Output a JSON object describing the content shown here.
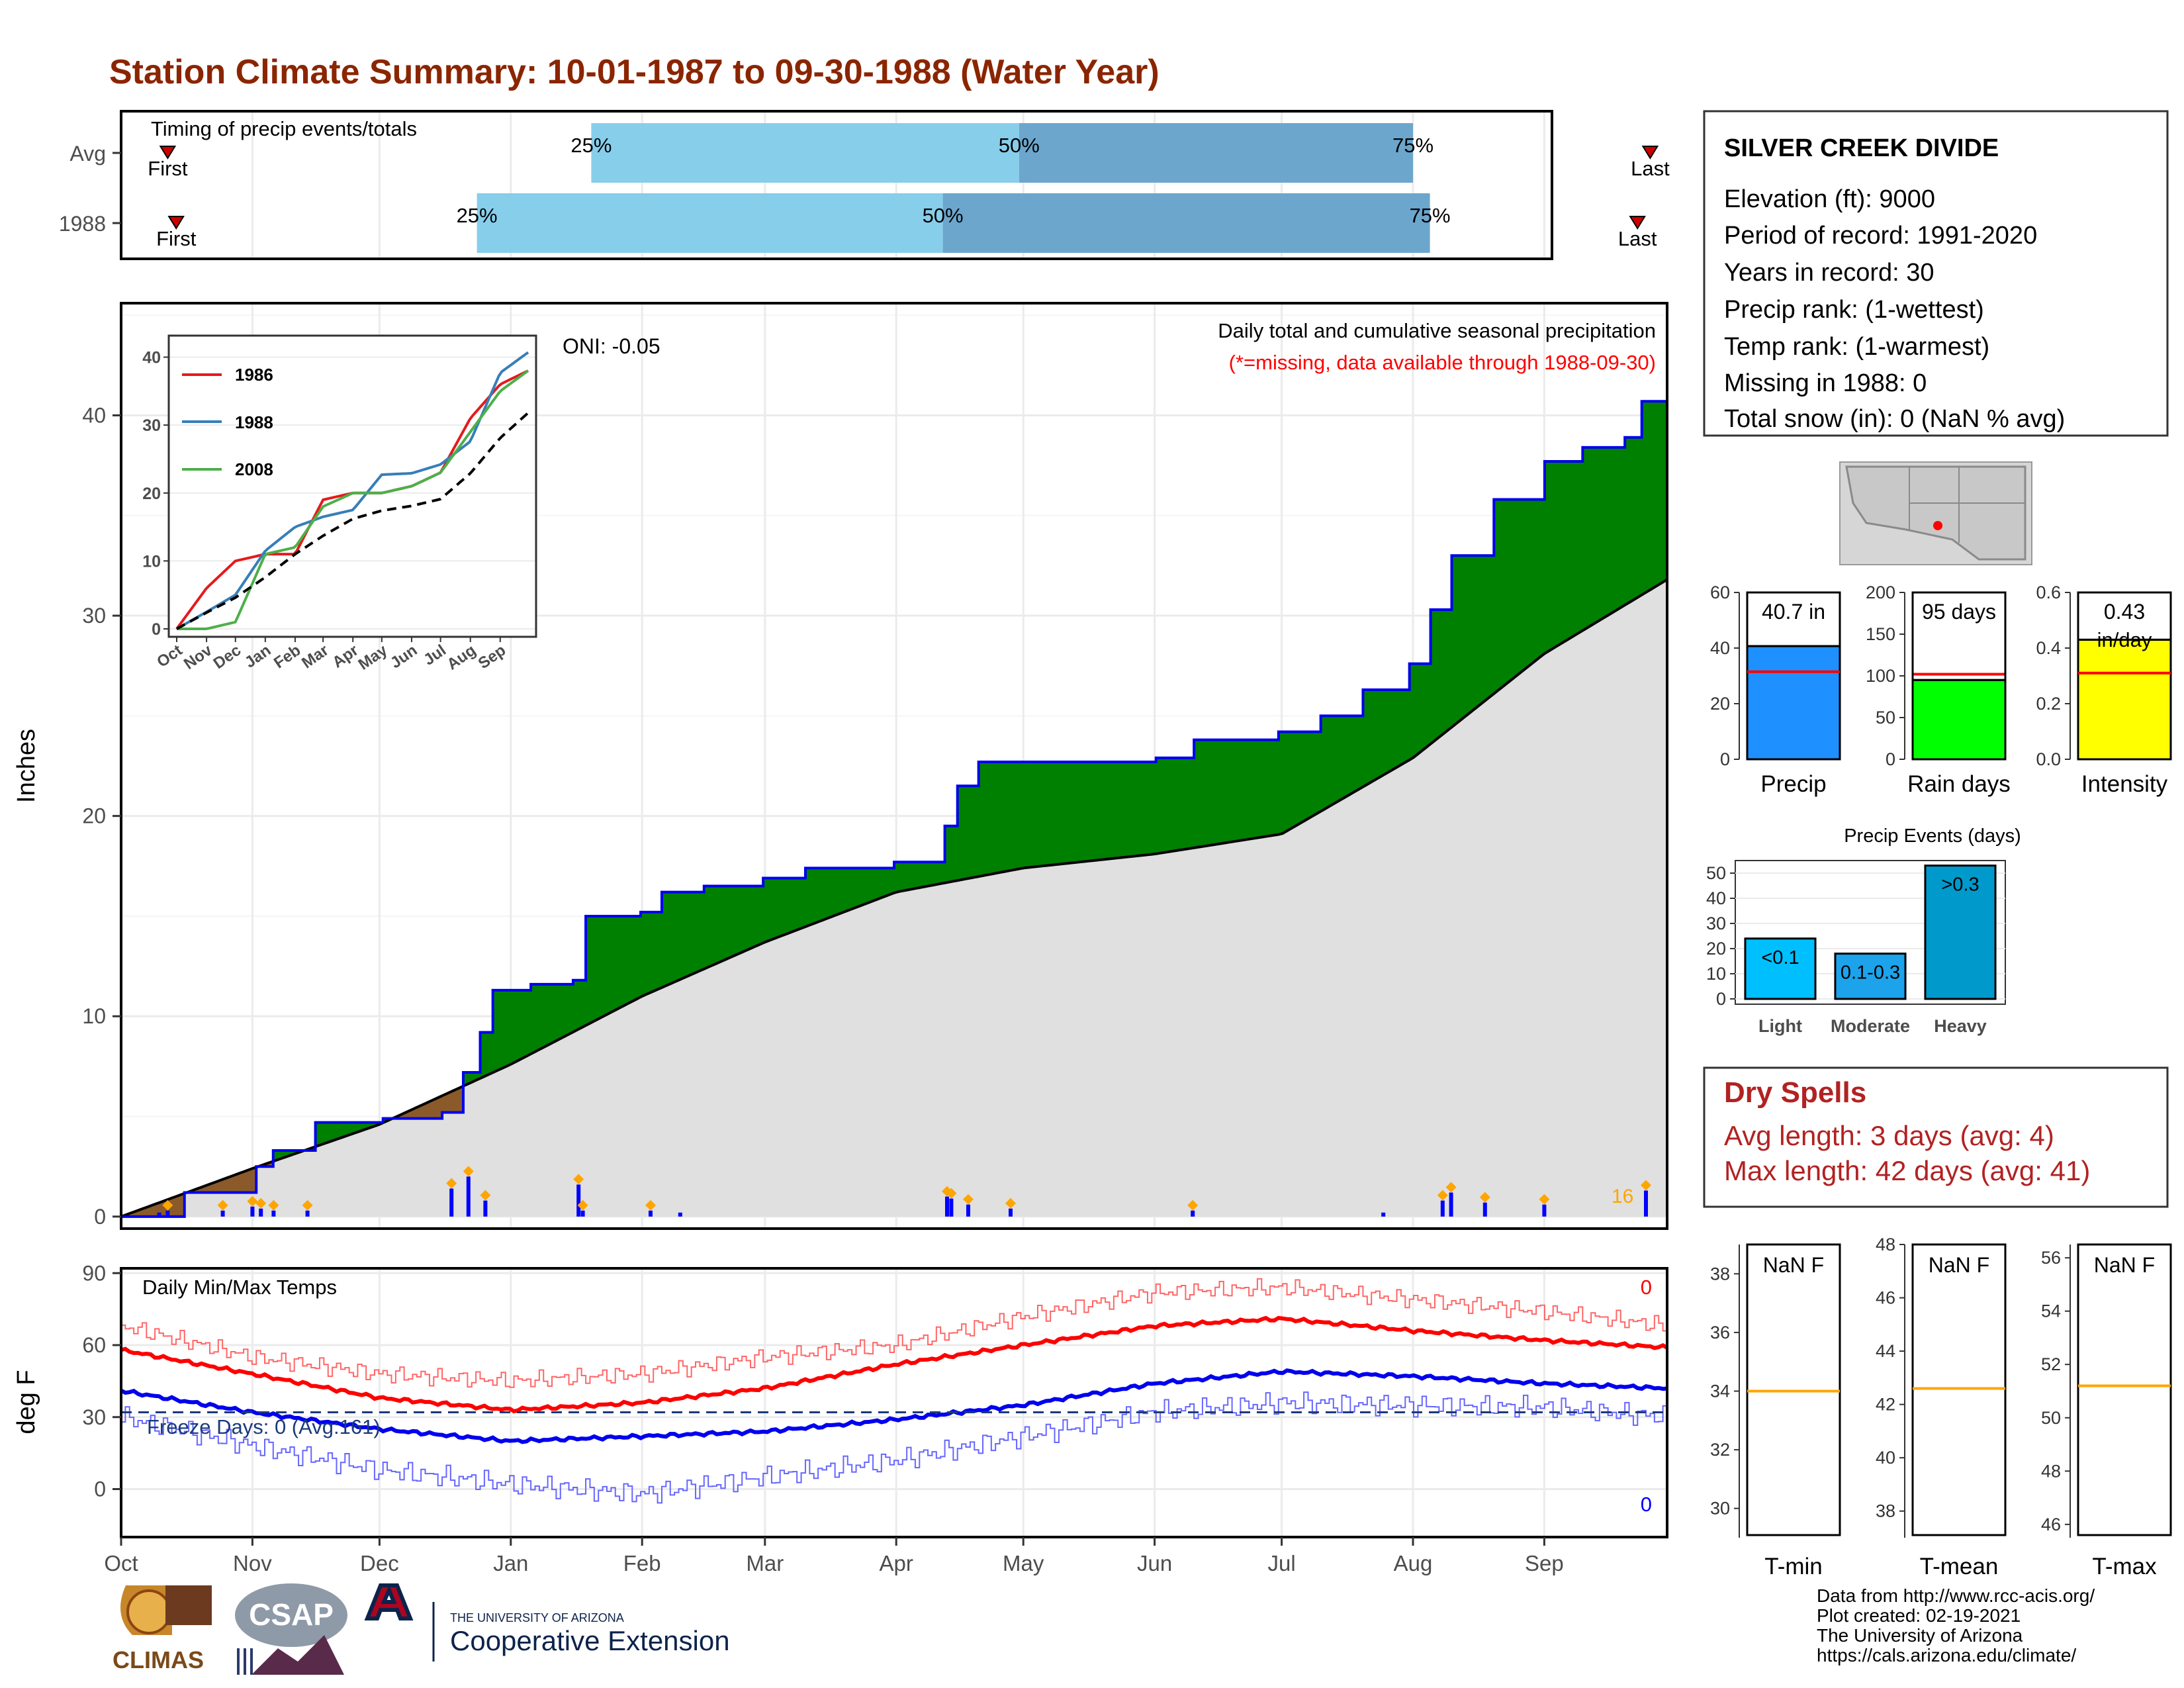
{
  "page_title": "Station Climate Summary: 10-01-1987 to 09-30-1988 (Water Year)",
  "colors": {
    "title": "#8B2500",
    "accent_red": "#B22222"
  },
  "timing_panel": {
    "title": "Timing of precip events/totals",
    "rows": [
      {
        "label": "Avg",
        "first_label": "First",
        "last_label": "Last",
        "p25": "25%",
        "p50": "50%",
        "p75": "75%",
        "first_date": "1987-10-12",
        "p25_date": "1988-01-20",
        "p50_date": "1988-04-30",
        "p75_date": "1988-08-01",
        "last_date": "1988-09-26"
      },
      {
        "label": "1988",
        "first_label": "First",
        "last_label": "Last",
        "p25": "25%",
        "p50": "50%",
        "p75": "75%",
        "first_date": "1987-10-14",
        "p25_date": "1987-12-24",
        "p50_date": "1988-04-12",
        "p75_date": "1988-08-05",
        "last_date": "1988-09-23"
      }
    ]
  },
  "station_info": {
    "name": "SILVER CREEK DIVIDE",
    "lines": [
      "Elevation (ft): 9000",
      "Period of record: 1991-2020",
      "Years in record: 30",
      "Precip rank:  (1-wettest)",
      "Temp rank:  (1-warmest)",
      "Missing in 1988: 0",
      "Total snow (in): 0 (NaN % avg)"
    ]
  },
  "precip_panel": {
    "ylabel": "Inches",
    "header": "Daily total and cumulative seasonal precipitation",
    "missing_note": "(*=missing, data available through 1988-09-30)",
    "oni": "ONI: -0.05",
    "max_daily_label": "16"
  },
  "temp_panel": {
    "ylabel": "deg F",
    "title": "Daily Min/Max Temps",
    "freeze_days": "Freeze Days: 0 (Avg:161)",
    "top_count": "0",
    "bottom_count": "0"
  },
  "months": [
    "Oct",
    "Nov",
    "Dec",
    "Jan",
    "Feb",
    "Mar",
    "Apr",
    "May",
    "Jun",
    "Jul",
    "Aug",
    "Sep"
  ],
  "summary_bars": {
    "precip": {
      "label": "Precip",
      "value_text": "40.7 in",
      "value": 40.7,
      "avg": 31.5,
      "ymax": 60,
      "ticks": [
        "0",
        "20",
        "40",
        "60"
      ],
      "color": "#1E90FF"
    },
    "rain_days": {
      "label": "Rain days",
      "value_text": "95 days",
      "value": 95,
      "avg": 102,
      "ymax": 200,
      "ticks": [
        "0",
        "50",
        "100",
        "150",
        "200"
      ],
      "color": "#00FF00"
    },
    "intensity": {
      "label": "Intensity",
      "value_text": "0.43",
      "value_unit": "in/day",
      "value": 0.43,
      "avg": 0.31,
      "ymax": 0.6,
      "ticks": [
        "0.0",
        "0.2",
        "0.4",
        "0.6"
      ],
      "color": "#FFFF00"
    }
  },
  "precip_events": {
    "title": "Precip Events (days)",
    "ticks": [
      "0",
      "10",
      "20",
      "30",
      "40",
      "50"
    ],
    "bars": [
      {
        "category": "Light",
        "label": "<0.1",
        "value": 24,
        "color": "#00BFFF"
      },
      {
        "category": "Moderate",
        "label": "0.1-0.3",
        "value": 18,
        "color": "#1CA3EC"
      },
      {
        "category": "Heavy",
        "label": ">0.3",
        "value": 53,
        "color": "#0099CC"
      }
    ]
  },
  "dry_spells": {
    "title": "Dry Spells",
    "avg_length": "Avg length: 3 days (avg: 4)",
    "max_length": "Max length: 42 days (avg: 41)"
  },
  "temp_boxes": [
    {
      "label": "T-min",
      "value_text": "NaN F",
      "ticks": [
        "30",
        "32",
        "34",
        "36",
        "38"
      ],
      "avg": 34.0,
      "ymin": 29,
      "ymax": 39
    },
    {
      "label": "T-mean",
      "value_text": "NaN F",
      "ticks": [
        "38",
        "40",
        "42",
        "44",
        "46",
        "48"
      ],
      "avg": 42.6,
      "ymin": 37,
      "ymax": 48
    },
    {
      "label": "T-max",
      "value_text": "NaN F",
      "ticks": [
        "46",
        "48",
        "50",
        "52",
        "54",
        "56"
      ],
      "avg": 51.2,
      "ymin": 45.5,
      "ymax": 56.5
    }
  ],
  "footer": {
    "lines": [
      "Data from http://www.rcc-acis.org/",
      "Plot created: 02-19-2021",
      "The University of Arizona",
      "https://cals.arizona.edu/climate/"
    ]
  },
  "logos": {
    "climas": "CLIMAS",
    "csap": "CSAP",
    "ua_small": "THE UNIVERSITY OF ARIZONA",
    "ua_big": "Cooperative Extension"
  },
  "inset_legend": [
    "1986",
    "1988",
    "2008"
  ],
  "chart_data": [
    {
      "type": "area",
      "name": "cumulative precipitation",
      "ylim": [
        0,
        45
      ],
      "series": [
        {
          "name": "1988",
          "x": [
            "1987-10-01",
            "1987-10-15",
            "1987-11-01",
            "1987-11-05",
            "1987-11-15",
            "1987-12-01",
            "1987-12-15",
            "1987-12-20",
            "1987-12-24",
            "1987-12-27",
            "1988-01-05",
            "1988-01-15",
            "1988-01-18",
            "1988-01-31",
            "1988-02-05",
            "1988-02-15",
            "1988-02-29",
            "1988-03-10",
            "1988-03-31",
            "1988-04-12",
            "1988-04-15",
            "1988-04-20",
            "1988-05-15",
            "1988-06-01",
            "1988-06-10",
            "1988-06-30",
            "1988-07-10",
            "1988-07-20",
            "1988-07-31",
            "1988-08-05",
            "1988-08-10",
            "1988-08-20",
            "1988-09-01",
            "1988-09-10",
            "1988-09-20",
            "1988-09-24",
            "1988-09-30"
          ],
          "values": [
            0,
            1.2,
            2.5,
            3.3,
            4.7,
            4.9,
            5.2,
            7.2,
            9.2,
            11.3,
            11.6,
            11.8,
            15.0,
            15.2,
            16.2,
            16.5,
            16.9,
            17.4,
            17.7,
            19.5,
            21.5,
            22.7,
            22.7,
            22.9,
            23.8,
            24.2,
            25.0,
            26.3,
            27.6,
            30.3,
            33.0,
            35.8,
            37.7,
            38.4,
            38.9,
            40.7,
            40.7
          ]
        },
        {
          "name": "Average",
          "x": [
            "1987-10-01",
            "1987-11-01",
            "1987-12-01",
            "1988-01-01",
            "1988-02-01",
            "1988-03-01",
            "1988-04-01",
            "1988-05-01",
            "1988-06-01",
            "1988-07-01",
            "1988-08-01",
            "1988-09-01",
            "1988-09-30"
          ],
          "values": [
            0,
            2.4,
            4.6,
            7.6,
            11.0,
            13.7,
            16.2,
            17.4,
            18.1,
            19.1,
            22.9,
            28.1,
            31.8
          ]
        }
      ],
      "daily_precip_days": [
        "1987-10-10",
        "1987-10-12",
        "1987-10-25",
        "1987-11-01",
        "1987-11-03",
        "1987-11-06",
        "1987-11-14",
        "1987-12-18",
        "1987-12-22",
        "1987-12-26",
        "1988-01-17",
        "1988-01-18",
        "1988-02-03",
        "1988-02-10",
        "1988-04-13",
        "1988-04-14",
        "1988-04-18",
        "1988-04-28",
        "1988-06-10",
        "1988-07-25",
        "1988-08-08",
        "1988-08-10",
        "1988-08-18",
        "1988-09-01",
        "1988-09-25"
      ],
      "daily_precip_values": [
        0.2,
        0.3,
        0.3,
        0.5,
        0.4,
        0.3,
        0.3,
        1.4,
        2.0,
        0.8,
        1.6,
        0.3,
        0.3,
        0.2,
        1.0,
        0.9,
        0.6,
        0.4,
        0.3,
        0.2,
        0.8,
        1.2,
        0.7,
        0.6,
        1.3
      ]
    },
    {
      "type": "line",
      "name": "daily temperatures",
      "ylim": [
        -20,
        92
      ],
      "x": [
        "1987-10-01",
        "1987-11-01",
        "1987-12-01",
        "1988-01-01",
        "1988-02-01",
        "1988-03-01",
        "1988-04-01",
        "1988-05-01",
        "1988-06-01",
        "1988-07-01",
        "1988-08-01",
        "1988-09-01",
        "1988-09-30"
      ],
      "series": [
        {
          "name": "Avg max",
          "values": [
            58,
            48,
            38,
            33,
            36,
            42,
            52,
            60,
            68,
            71,
            66,
            62,
            59
          ]
        },
        {
          "name": "Max",
          "values": [
            68,
            55,
            48,
            45,
            48,
            55,
            60,
            72,
            82,
            84,
            79,
            74,
            68
          ]
        },
        {
          "name": "Avg min",
          "values": [
            41,
            32,
            25,
            20,
            22,
            24,
            29,
            35,
            44,
            49,
            47,
            44,
            42
          ]
        },
        {
          "name": "Min",
          "values": [
            30,
            18,
            8,
            2,
            -2,
            5,
            12,
            22,
            32,
            36,
            35,
            34,
            30
          ]
        }
      ],
      "freeze_line": 32
    },
    {
      "type": "line",
      "name": "inset cumulative precip",
      "ylim": [
        0,
        42
      ],
      "x": [
        "1987-10-01",
        "1987-11-01",
        "1987-12-01",
        "1988-01-01",
        "1988-02-01",
        "1988-03-01",
        "1988-04-01",
        "1988-05-01",
        "1988-06-01",
        "1988-07-01",
        "1988-08-01",
        "1988-09-01",
        "1988-09-30"
      ],
      "series": [
        {
          "name": "1986",
          "values": [
            0,
            6,
            10,
            11,
            11,
            19,
            20,
            20,
            21,
            23,
            31,
            36,
            38
          ]
        },
        {
          "name": "1988",
          "values": [
            0,
            2.5,
            5,
            11.5,
            15,
            16.5,
            17.5,
            22.7,
            22.9,
            24.2,
            27.6,
            37.7,
            40.7
          ]
        },
        {
          "name": "2008",
          "values": [
            0,
            0,
            1,
            11,
            12,
            18,
            20,
            20,
            21,
            23,
            29,
            35,
            38
          ]
        },
        {
          "name": "Average",
          "values": [
            0,
            2.4,
            4.6,
            7.6,
            11.0,
            13.7,
            16.2,
            17.4,
            18.1,
            19.1,
            22.9,
            28.1,
            31.8
          ]
        }
      ]
    }
  ]
}
